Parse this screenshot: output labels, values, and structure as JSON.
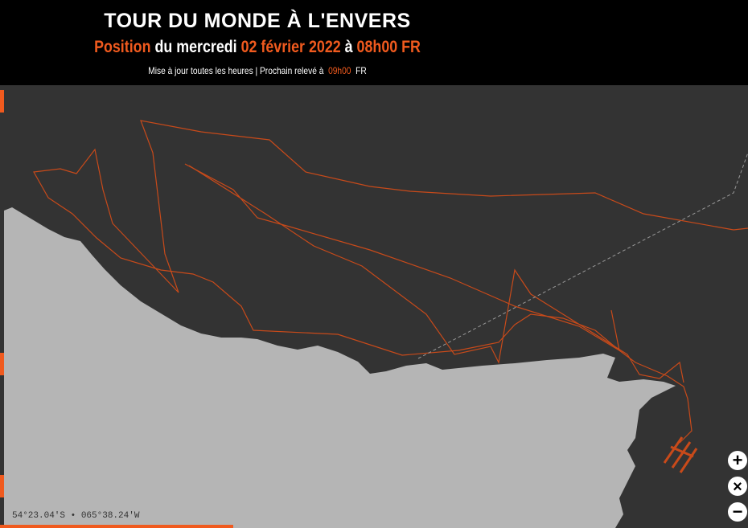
{
  "header": {
    "title": "TOUR DU MONDE À L'ENVERS",
    "subtitle": {
      "position": "Position",
      "day": "du mercredi",
      "date": "02 février 2022",
      "at": "à",
      "time": "08h00 FR"
    },
    "update": {
      "text": "Mise à jour toutes les heures | Prochain relevé à",
      "next": "09h00",
      "zone": "FR"
    }
  },
  "map": {
    "coordinates": "54°23.04'S • 065°38.24'W"
  },
  "controls": {
    "zoom_in": "+",
    "reset": "×",
    "zoom_out": "−"
  }
}
